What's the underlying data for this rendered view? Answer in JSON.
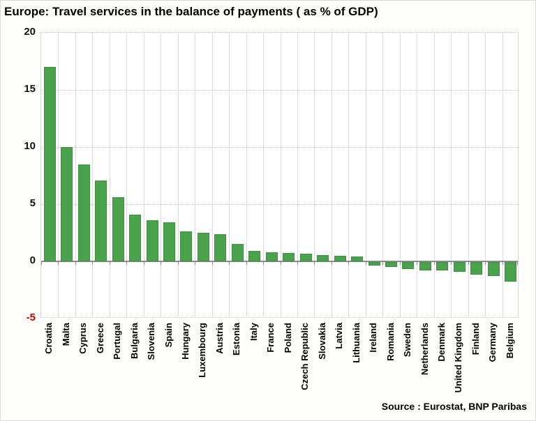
{
  "title": "Europe: Travel services in the balance of payments ( as % of GDP)",
  "source": "Source : Eurostat, BNP Paribas",
  "colors": {
    "bar_fill": "#4BA24D",
    "bar_edge": "#3F8F43",
    "axis_line": "#8a8a8a",
    "tick_label": "#111111",
    "negative_tick_label": "#CC0000",
    "vgrid": "#dcdcdc",
    "hgrid": "#c9c9c9"
  },
  "chart_data": {
    "type": "bar",
    "title": "Europe: Travel services in the balance of payments ( as % of GDP)",
    "xlabel": "",
    "ylabel": "",
    "ylim": [
      -5,
      20
    ],
    "yticks": [
      20,
      15,
      10,
      5,
      0,
      -5
    ],
    "grid": "horizontal-dotted-and-vertical-solid",
    "legend": "none",
    "source": "Source : Eurostat, BNP Paribas",
    "categories": [
      "Croatia",
      "Malta",
      "Cyprus",
      "Greece",
      "Portugal",
      "Bulgaria",
      "Slovenia",
      "Spain",
      "Hungary",
      "Luxembourg",
      "Austria",
      "Estonia",
      "Italy",
      "France",
      "Poland",
      "Czech Republic",
      "Slovakia",
      "Latvia",
      "Lithuania",
      "Ireland",
      "Romania",
      "Sweden",
      "Netherlands",
      "Denmark",
      "United Kingdom",
      "Finland",
      "Germany",
      "Belgium"
    ],
    "values": [
      17.0,
      10.0,
      8.5,
      7.1,
      5.6,
      4.1,
      3.6,
      3.4,
      2.6,
      2.5,
      2.4,
      1.5,
      0.9,
      0.8,
      0.75,
      0.7,
      0.55,
      0.5,
      0.4,
      -0.3,
      -0.45,
      -0.6,
      -0.75,
      -0.75,
      -0.85,
      -1.1,
      -1.2,
      -1.7
    ]
  }
}
